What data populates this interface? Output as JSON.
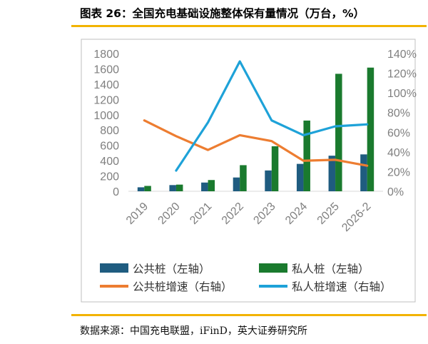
{
  "header": {
    "title": "图表 26：全国充电基础设施整体保有量情况（万台，%）"
  },
  "footer": {
    "source": "数据来源：中国充电联盟，iFinD，英大证券研究所"
  },
  "colors": {
    "accent_rule": "#f2b300",
    "public_bar": "#1f5c80",
    "private_bar": "#1a7a2e",
    "public_growth": "#ed7d31",
    "private_growth": "#1ea2d8",
    "axis_text": "#7f7f7f"
  },
  "chart_data": {
    "type": "bar",
    "categories": [
      "2019",
      "2020",
      "2021",
      "2022",
      "2023",
      "2024",
      "2025",
      "2026-2"
    ],
    "y_left": {
      "min": 0,
      "max": 1800,
      "step": 200,
      "ticks": [
        "0",
        "200",
        "400",
        "600",
        "800",
        "1000",
        "1200",
        "1400",
        "1600",
        "1800"
      ]
    },
    "y_right": {
      "min": 0,
      "max": 140,
      "step": 20,
      "ticks": [
        "0%",
        "20%",
        "40%",
        "60%",
        "80%",
        "100%",
        "120%",
        "140%"
      ]
    },
    "series": [
      {
        "name": "公共桩（左轴）",
        "type": "bar",
        "axis": "left",
        "values": [
          52,
          81,
          114,
          180,
          272,
          358,
          465,
          482
        ]
      },
      {
        "name": "私人桩（左轴）",
        "type": "bar",
        "axis": "left",
        "values": [
          70,
          87,
          147,
          341,
          588,
          924,
          1535,
          1616
        ]
      },
      {
        "name": "公共桩增速（右轴）",
        "type": "line",
        "axis": "right",
        "values": [
          72,
          56,
          42,
          57,
          51,
          31,
          32,
          26
        ]
      },
      {
        "name": "私人桩增速（右轴）",
        "type": "line",
        "axis": "right",
        "values": [
          null,
          21,
          70,
          132,
          72,
          57,
          66,
          68
        ]
      }
    ],
    "legend_position": "bottom",
    "grid": false
  }
}
